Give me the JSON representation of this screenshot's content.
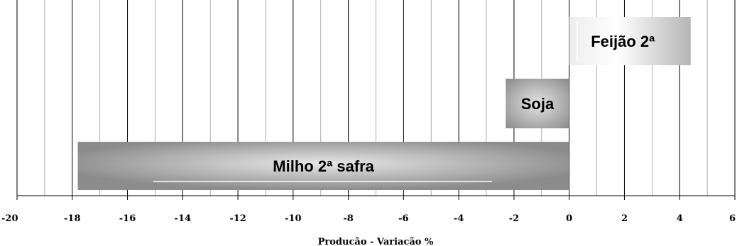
{
  "chart_data": {
    "type": "bar",
    "orientation": "horizontal",
    "xlabel": "Producão - Variacão %",
    "xlim": [
      -20,
      6
    ],
    "xticks": [
      -20,
      -18,
      -16,
      -14,
      -12,
      -10,
      -8,
      -6,
      -4,
      -2,
      0,
      2,
      4,
      6
    ],
    "tick_labels": [
      "-20",
      "-18",
      "-16",
      "-14",
      "-12",
      "-10",
      "-8",
      "-6",
      "-4",
      "-2",
      "0",
      "2",
      "4",
      "6"
    ],
    "grid": true,
    "categories": [
      "Feijão 2ª",
      "Soja",
      "Milho 2ª safra"
    ],
    "values": [
      4.4,
      -2.3,
      -17.8
    ],
    "bar_labels": [
      "Feijão 2ª",
      "Soja",
      "Milho 2ª safra"
    ],
    "colors": {
      "bar_light": "#e6e6e6",
      "bar_dark": "#8c8c8c",
      "grid_major": "#000000",
      "grid_minor": "#9a9a9a"
    }
  }
}
